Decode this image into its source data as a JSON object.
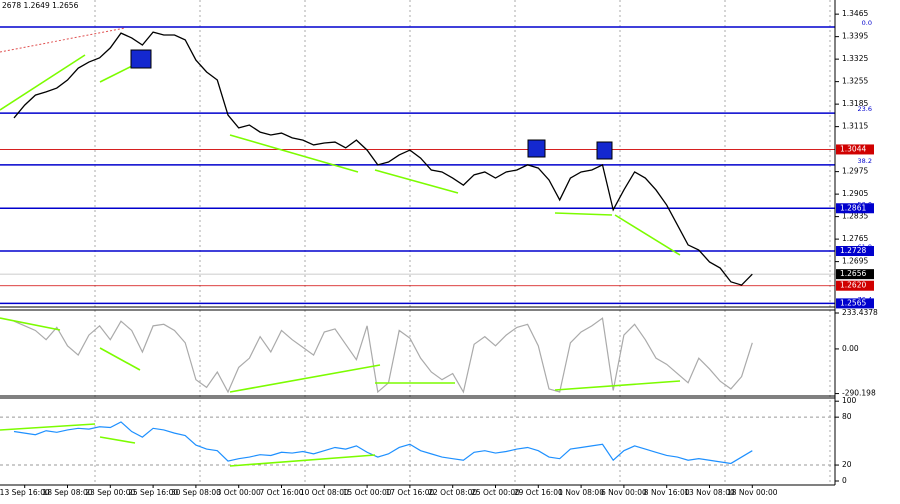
{
  "chart_data": [
    {
      "type": "line",
      "title": "2678 1.2649 1.2656",
      "categories": [
        null,
        "13 Sep 16:00",
        null,
        null,
        null,
        "18 Sep 08:00",
        null,
        null,
        null,
        "23 Sep 00:00",
        null,
        null,
        null,
        "25 Sep 16:00",
        null,
        null,
        null,
        "30 Sep 08:00",
        null,
        null,
        null,
        "3 Oct 00:00",
        null,
        null,
        null,
        "7 Oct 16:00",
        null,
        null,
        null,
        "10 Oct 08:00",
        null,
        null,
        null,
        "15 Oct 00:00",
        null,
        null,
        null,
        "17 Oct 16:00",
        null,
        null,
        null,
        "22 Oct 08:00",
        null,
        null,
        null,
        "25 Oct 00:00",
        null,
        null,
        null,
        "29 Oct 16:00",
        null,
        null,
        null,
        "1 Nov 08:00",
        null,
        null,
        null,
        "6 Nov 00:00",
        null,
        null,
        null,
        "8 Nov 16:00",
        null,
        null,
        null,
        "13 Nov 08:00",
        null,
        null,
        null,
        "18 Nov 00:00"
      ],
      "series": [
        {
          "color": "#000000",
          "values": [
            1.3142,
            1.3182,
            1.3213,
            1.3223,
            1.3235,
            1.326,
            1.3297,
            1.3316,
            1.3329,
            1.336,
            1.3406,
            1.3391,
            1.3369,
            1.3409,
            1.34,
            1.34,
            1.3385,
            1.3322,
            1.3285,
            1.326,
            1.3151,
            1.3111,
            1.312,
            1.3098,
            1.3089,
            1.3095,
            1.308,
            1.3073,
            1.3058,
            1.3064,
            1.3067,
            1.3049,
            1.3073,
            1.3042,
            1.2996,
            1.3005,
            1.3027,
            1.3042,
            1.3017,
            1.298,
            1.2974,
            1.2955,
            1.2933,
            1.2965,
            1.2974,
            1.2955,
            1.2974,
            1.298,
            1.2996,
            1.2986,
            1.2949,
            1.2887,
            1.2955,
            1.2974,
            1.298,
            1.2996,
            1.2856,
            1.2918,
            1.2974,
            1.2955,
            1.2918,
            1.2871,
            1.2809,
            1.2747,
            1.2731,
            1.2694,
            1.2675,
            1.2632,
            1.2622,
            1.2656
          ]
        }
      ],
      "ylim": [
        1.256,
        1.3509
      ],
      "yticks": [
        1.3465,
        1.3395,
        1.3325,
        1.3255,
        1.3185,
        1.3115,
        1.2975,
        1.2905,
        1.2835,
        1.2765,
        1.2695
      ],
      "levels": [
        {
          "label": "0.0",
          "value": 1.3425,
          "color": "#0000cd"
        },
        {
          "label": "23.6",
          "value": 1.3157,
          "color": "#0000cd"
        },
        {
          "label": "38.2",
          "value": 1.2996,
          "color": "#0000cd"
        },
        {
          "label": "50.0",
          "value": 1.2861,
          "color": "#0000cd"
        },
        {
          "label": "61.8",
          "value": 1.2728,
          "color": "#0000cd"
        },
        {
          "label": "76.4",
          "value": 1.2565,
          "color": "#0000cd"
        }
      ],
      "price_tags": [
        {
          "value": 1.3044,
          "color": "#d00000"
        },
        {
          "value": 1.2861,
          "color": "#0000cd"
        },
        {
          "value": 1.2728,
          "color": "#0000cd"
        },
        {
          "value": 1.2656,
          "color": "#000000"
        },
        {
          "value": 1.262,
          "label": "1.2620",
          "color": "#d00000"
        },
        {
          "value": 1.2565,
          "color": "#0000cd"
        }
      ]
    },
    {
      "type": "line",
      "series": [
        {
          "color": "#aaaaaa",
          "values": [
            180,
            150,
            120,
            60,
            140,
            20,
            -40,
            90,
            150,
            60,
            180,
            120,
            -20,
            150,
            160,
            120,
            40,
            -200,
            -250,
            -150,
            -280,
            -120,
            -60,
            80,
            -20,
            120,
            60,
            10,
            -40,
            110,
            130,
            30,
            -70,
            150,
            -280,
            -220,
            120,
            70,
            -60,
            -150,
            -200,
            -160,
            -280,
            30,
            80,
            20,
            90,
            140,
            160,
            20,
            -260,
            -280,
            40,
            110,
            150,
            200,
            -270,
            90,
            160,
            60,
            -60,
            -100,
            -160,
            -220,
            -60,
            -130,
            -210,
            -260,
            -180,
            40
          ]
        }
      ],
      "ylim": [
        -306,
        253
      ],
      "yticks": [
        233.4378,
        {
          "value": 0,
          "label": "0.00"
        },
        -290.198
      ]
    },
    {
      "type": "line",
      "series": [
        {
          "color": "#1e90ff",
          "values": [
            62,
            60,
            58,
            63,
            61,
            64,
            66,
            65,
            68,
            67,
            74,
            62,
            55,
            66,
            64,
            60,
            57,
            45,
            40,
            38,
            25,
            28,
            30,
            33,
            32,
            36,
            35,
            37,
            34,
            38,
            42,
            40,
            44,
            36,
            30,
            34,
            42,
            46,
            38,
            34,
            30,
            28,
            26,
            36,
            38,
            35,
            37,
            40,
            42,
            38,
            30,
            28,
            40,
            42,
            44,
            46,
            26,
            38,
            44,
            40,
            36,
            32,
            30,
            26,
            28,
            26,
            24,
            22,
            30,
            38
          ]
        }
      ],
      "ylim": [
        -5,
        104
      ],
      "yticks": [
        100,
        80,
        20,
        0
      ]
    }
  ]
}
